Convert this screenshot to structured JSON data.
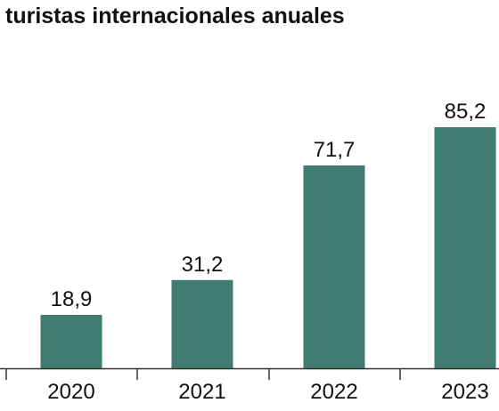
{
  "chart_data": {
    "type": "bar",
    "title": "turistas internacionales anuales",
    "categories": [
      "2020",
      "2021",
      "2022",
      "2023"
    ],
    "values": [
      18.9,
      31.2,
      71.7,
      85.2
    ],
    "value_labels": [
      "18,9",
      "31,2",
      "71,7",
      "85,2"
    ],
    "xlabel": "",
    "ylabel": "",
    "ylim": [
      0,
      85.2
    ],
    "grid": false,
    "bar_color": "#417c72"
  }
}
